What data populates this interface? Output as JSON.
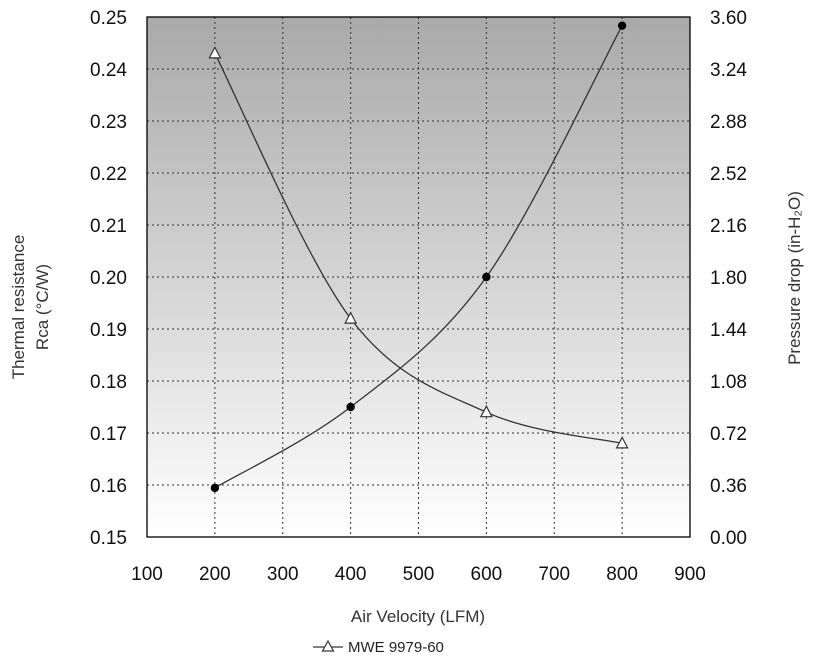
{
  "chart_data": {
    "type": "line",
    "title": "",
    "xlabel": "Air Velocity (LFM)",
    "ylabel_left_line1": "Thermal resistance",
    "ylabel_left_line2": "Rca (°C/W)",
    "ylabel_right": "Pressure drop (in-H₂O)",
    "xlim": [
      100,
      900
    ],
    "ylim_left": [
      0.15,
      0.25
    ],
    "ylim_right": [
      0.0,
      3.6
    ],
    "x_ticks": [
      "100",
      "200",
      "300",
      "400",
      "500",
      "600",
      "700",
      "800",
      "900"
    ],
    "y_left_ticks": [
      "0.15",
      "0.16",
      "0.17",
      "0.18",
      "0.19",
      "0.20",
      "0.21",
      "0.22",
      "0.23",
      "0.24",
      "0.25"
    ],
    "y_right_ticks": [
      "0.00",
      "0.36",
      "0.72",
      "1.08",
      "1.44",
      "1.80",
      "2.16",
      "2.52",
      "2.88",
      "3.24",
      "3.60"
    ],
    "grid": true,
    "legend_position": "bottom-center",
    "series": [
      {
        "name": "MWE 9979-60",
        "axis": "left",
        "marker": "triangle-open",
        "x": [
          200,
          400,
          600,
          800
        ],
        "y": [
          0.243,
          0.192,
          0.174,
          0.168
        ]
      },
      {
        "axis": "right",
        "marker": "circle-filled",
        "x": [
          200,
          400,
          600,
          800
        ],
        "y": [
          0.34,
          0.9,
          1.8,
          3.54
        ]
      }
    ]
  }
}
